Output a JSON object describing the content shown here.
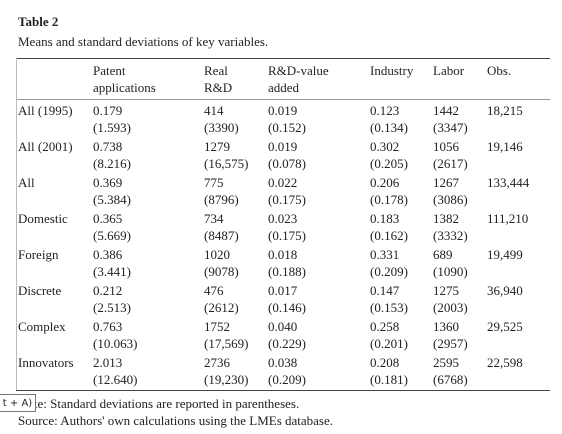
{
  "title": "Table 2",
  "caption": "Means and standard deviations of key variables.",
  "table": {
    "header": [
      [],
      [
        "Patent",
        "applications"
      ],
      [
        "Real",
        "R&D"
      ],
      [
        "R&D-value",
        "added"
      ],
      [
        "Industry"
      ],
      [
        "Labor"
      ],
      [
        "Obs."
      ]
    ],
    "rows": [
      {
        "label": "All (1995)",
        "means": [
          "0.179",
          "414",
          "0.019",
          "0.123",
          "1442",
          "18,215"
        ],
        "sds": [
          "(1.593)",
          "(3390)",
          "(0.152)",
          "(0.134)",
          "(3347)"
        ]
      },
      {
        "label": "All (2001)",
        "means": [
          "0.738",
          "1279",
          "0.019",
          "0.302",
          "1056",
          "19,146"
        ],
        "sds": [
          "(8.216)",
          "(16,575)",
          "(0.078)",
          "(0.205)",
          "(2617)"
        ]
      },
      {
        "label": "All",
        "means": [
          "0.369",
          "775",
          "0.022",
          "0.206",
          "1267",
          "133,444"
        ],
        "sds": [
          "(5.384)",
          "(8796)",
          "(0.175)",
          "(0.178)",
          "(3086)"
        ]
      },
      {
        "label": "Domestic",
        "means": [
          "0.365",
          "734",
          "0.023",
          "0.183",
          "1382",
          "111,210"
        ],
        "sds": [
          "(5.669)",
          "(8487)",
          "(0.175)",
          "(0.162)",
          "(3332)"
        ]
      },
      {
        "label": "Foreign",
        "means": [
          "0.386",
          "1020",
          "0.018",
          "0.331",
          "689",
          "19,499"
        ],
        "sds": [
          "(3.441)",
          "(9078)",
          "(0.188)",
          "(0.209)",
          "(1090)"
        ]
      },
      {
        "label": "Discrete",
        "means": [
          "0.212",
          "476",
          "0.017",
          "0.147",
          "1275",
          "36,940"
        ],
        "sds": [
          "(2.513)",
          "(2612)",
          "(0.146)",
          "(0.153)",
          "(2003)"
        ]
      },
      {
        "label": "Complex",
        "means": [
          "0.763",
          "1752",
          "0.040",
          "0.258",
          "1360",
          "29,525"
        ],
        "sds": [
          "(10.063)",
          "(17,569)",
          "(0.229)",
          "(0.201)",
          "(2957)"
        ]
      },
      {
        "label": "Innovators",
        "means": [
          "2.013",
          "2736",
          "0.038",
          "0.208",
          "2595",
          "22,598"
        ],
        "sds": [
          "(12.640)",
          "(19,230)",
          "(0.209)",
          "(0.181)",
          "(6768)"
        ]
      }
    ]
  },
  "note": "Note: Standard deviations are reported in parentheses.",
  "source": "Source: Authors' own calculations using the LMEs database.",
  "tooltip": "t + A)"
}
